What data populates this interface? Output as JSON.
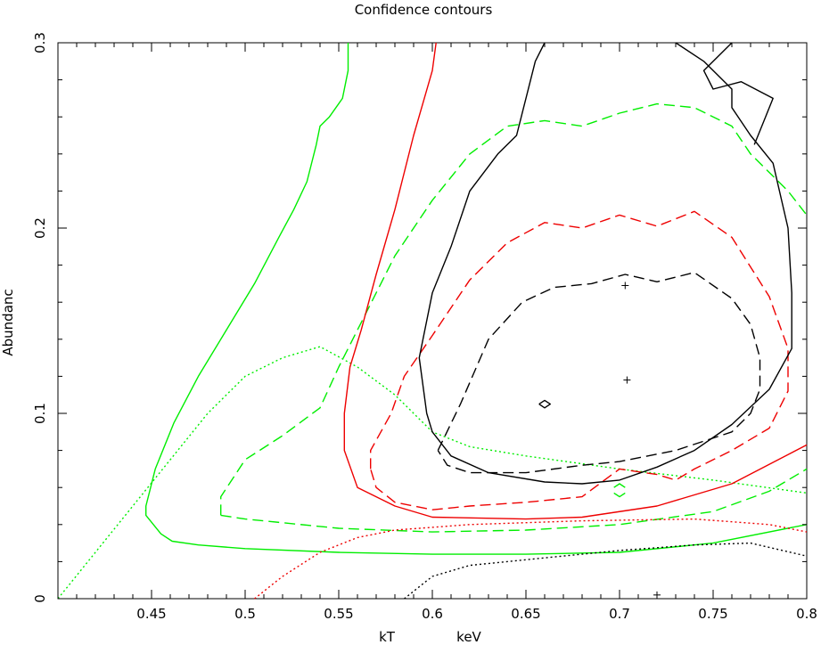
{
  "chart_data": {
    "type": "line",
    "title": "Confidence contours",
    "xlabel": "kT",
    "xunit": "keV",
    "ylabel": "Abundanc",
    "xlim": [
      0.4,
      0.8
    ],
    "ylim": [
      0,
      0.3
    ],
    "xticks": [
      "0.45",
      "0.5",
      "0.55",
      "0.6",
      "0.65",
      "0.7",
      "0.75",
      "0.8"
    ],
    "xtick_values": [
      0.45,
      0.5,
      0.55,
      0.6,
      0.65,
      0.7,
      0.75,
      0.8
    ],
    "yticks": [
      "0",
      "0.1",
      "0.2",
      "0.3"
    ],
    "ytick_values": [
      0,
      0.1,
      0.2,
      0.3
    ],
    "grid": false,
    "colors": {
      "green": "#00ee00",
      "red": "#ee0000",
      "black": "#000000"
    },
    "series": [
      {
        "color": "green",
        "style": "solid",
        "points": [
          [
            0.555,
            0.3
          ],
          [
            0.555,
            0.285
          ],
          [
            0.552,
            0.27
          ],
          [
            0.545,
            0.26
          ],
          [
            0.54,
            0.255
          ],
          [
            0.538,
            0.245
          ],
          [
            0.533,
            0.225
          ],
          [
            0.526,
            0.21
          ],
          [
            0.518,
            0.195
          ],
          [
            0.505,
            0.17
          ],
          [
            0.49,
            0.145
          ],
          [
            0.475,
            0.12
          ],
          [
            0.462,
            0.095
          ],
          [
            0.452,
            0.07
          ],
          [
            0.447,
            0.05
          ],
          [
            0.447,
            0.045
          ],
          [
            0.455,
            0.035
          ],
          [
            0.461,
            0.031
          ],
          [
            0.475,
            0.029
          ],
          [
            0.5,
            0.027
          ],
          [
            0.55,
            0.025
          ],
          [
            0.6,
            0.024
          ],
          [
            0.65,
            0.024
          ],
          [
            0.7,
            0.025
          ],
          [
            0.75,
            0.03
          ],
          [
            0.8,
            0.04
          ]
        ]
      },
      {
        "color": "green",
        "style": "dashed",
        "points": [
          [
            0.487,
            0.045
          ],
          [
            0.487,
            0.055
          ],
          [
            0.5,
            0.075
          ],
          [
            0.52,
            0.088
          ],
          [
            0.54,
            0.103
          ],
          [
            0.55,
            0.125
          ],
          [
            0.565,
            0.155
          ],
          [
            0.58,
            0.185
          ],
          [
            0.6,
            0.215
          ],
          [
            0.62,
            0.24
          ],
          [
            0.64,
            0.255
          ],
          [
            0.66,
            0.258
          ],
          [
            0.68,
            0.255
          ],
          [
            0.7,
            0.262
          ],
          [
            0.72,
            0.267
          ],
          [
            0.74,
            0.265
          ],
          [
            0.76,
            0.255
          ],
          [
            0.77,
            0.24
          ],
          [
            0.79,
            0.22
          ],
          [
            0.8,
            0.207
          ]
        ]
      },
      {
        "color": "green",
        "style": "dashed",
        "points": [
          [
            0.487,
            0.045
          ],
          [
            0.5,
            0.043
          ],
          [
            0.55,
            0.038
          ],
          [
            0.6,
            0.036
          ],
          [
            0.65,
            0.037
          ],
          [
            0.7,
            0.04
          ],
          [
            0.75,
            0.047
          ],
          [
            0.78,
            0.058
          ],
          [
            0.8,
            0.07
          ]
        ]
      },
      {
        "color": "green",
        "style": "dotted",
        "points": [
          [
            0.4,
            0.0
          ],
          [
            0.42,
            0.025
          ],
          [
            0.44,
            0.05
          ],
          [
            0.46,
            0.075
          ],
          [
            0.48,
            0.1
          ],
          [
            0.5,
            0.12
          ],
          [
            0.52,
            0.13
          ],
          [
            0.54,
            0.136
          ],
          [
            0.56,
            0.125
          ],
          [
            0.58,
            0.11
          ],
          [
            0.6,
            0.09
          ],
          [
            0.62,
            0.082
          ],
          [
            0.65,
            0.077
          ],
          [
            0.7,
            0.07
          ],
          [
            0.75,
            0.064
          ],
          [
            0.8,
            0.057
          ]
        ]
      },
      {
        "color": "red",
        "style": "solid",
        "points": [
          [
            0.602,
            0.3
          ],
          [
            0.6,
            0.285
          ],
          [
            0.59,
            0.25
          ],
          [
            0.58,
            0.21
          ],
          [
            0.57,
            0.175
          ],
          [
            0.562,
            0.145
          ],
          [
            0.556,
            0.125
          ],
          [
            0.553,
            0.1
          ],
          [
            0.553,
            0.08
          ],
          [
            0.56,
            0.06
          ],
          [
            0.58,
            0.05
          ],
          [
            0.6,
            0.044
          ],
          [
            0.65,
            0.043
          ],
          [
            0.68,
            0.044
          ],
          [
            0.72,
            0.05
          ],
          [
            0.76,
            0.062
          ],
          [
            0.8,
            0.083
          ]
        ]
      },
      {
        "color": "red",
        "style": "dashed",
        "points": [
          [
            0.567,
            0.07
          ],
          [
            0.567,
            0.08
          ],
          [
            0.578,
            0.1
          ],
          [
            0.585,
            0.12
          ],
          [
            0.6,
            0.142
          ],
          [
            0.62,
            0.172
          ],
          [
            0.64,
            0.192
          ],
          [
            0.66,
            0.203
          ],
          [
            0.68,
            0.2
          ],
          [
            0.7,
            0.207
          ],
          [
            0.72,
            0.201
          ],
          [
            0.74,
            0.209
          ],
          [
            0.76,
            0.195
          ],
          [
            0.78,
            0.163
          ],
          [
            0.79,
            0.135
          ],
          [
            0.79,
            0.112
          ],
          [
            0.78,
            0.092
          ],
          [
            0.76,
            0.08
          ],
          [
            0.74,
            0.07
          ],
          [
            0.73,
            0.064
          ],
          [
            0.72,
            0.067
          ],
          [
            0.7,
            0.07
          ],
          [
            0.68,
            0.055
          ],
          [
            0.65,
            0.052
          ],
          [
            0.62,
            0.05
          ],
          [
            0.6,
            0.048
          ],
          [
            0.58,
            0.052
          ],
          [
            0.57,
            0.06
          ],
          [
            0.567,
            0.07
          ]
        ]
      },
      {
        "color": "red",
        "style": "dotted",
        "points": [
          [
            0.505,
            0.0
          ],
          [
            0.52,
            0.012
          ],
          [
            0.54,
            0.025
          ],
          [
            0.56,
            0.033
          ],
          [
            0.58,
            0.037
          ],
          [
            0.62,
            0.04
          ],
          [
            0.68,
            0.042
          ],
          [
            0.74,
            0.043
          ],
          [
            0.78,
            0.04
          ],
          [
            0.8,
            0.036
          ]
        ]
      },
      {
        "color": "black",
        "style": "solid",
        "points": [
          [
            0.66,
            0.3
          ],
          [
            0.655,
            0.29
          ],
          [
            0.65,
            0.27
          ],
          [
            0.645,
            0.25
          ],
          [
            0.635,
            0.24
          ],
          [
            0.62,
            0.22
          ],
          [
            0.61,
            0.19
          ],
          [
            0.6,
            0.165
          ],
          [
            0.593,
            0.13
          ],
          [
            0.597,
            0.1
          ],
          [
            0.6,
            0.09
          ],
          [
            0.61,
            0.077
          ],
          [
            0.63,
            0.068
          ],
          [
            0.66,
            0.063
          ],
          [
            0.68,
            0.062
          ],
          [
            0.7,
            0.064
          ],
          [
            0.72,
            0.071
          ],
          [
            0.74,
            0.08
          ],
          [
            0.76,
            0.094
          ],
          [
            0.78,
            0.113
          ],
          [
            0.792,
            0.135
          ],
          [
            0.792,
            0.165
          ],
          [
            0.79,
            0.2
          ],
          [
            0.782,
            0.235
          ],
          [
            0.77,
            0.25
          ],
          [
            0.76,
            0.265
          ],
          [
            0.76,
            0.275
          ],
          [
            0.745,
            0.29
          ],
          [
            0.73,
            0.3
          ]
        ]
      },
      {
        "color": "black",
        "style": "solid",
        "points": [
          [
            0.76,
            0.3
          ],
          [
            0.745,
            0.285
          ],
          [
            0.75,
            0.275
          ],
          [
            0.765,
            0.279
          ],
          [
            0.782,
            0.27
          ],
          [
            0.778,
            0.26
          ],
          [
            0.772,
            0.245
          ]
        ]
      },
      {
        "color": "black",
        "style": "dashed",
        "points": [
          [
            0.603,
            0.08
          ],
          [
            0.615,
            0.105
          ],
          [
            0.63,
            0.14
          ],
          [
            0.648,
            0.16
          ],
          [
            0.665,
            0.168
          ],
          [
            0.685,
            0.17
          ],
          [
            0.703,
            0.175
          ],
          [
            0.72,
            0.171
          ],
          [
            0.74,
            0.176
          ],
          [
            0.76,
            0.162
          ],
          [
            0.77,
            0.148
          ],
          [
            0.775,
            0.13
          ],
          [
            0.775,
            0.113
          ],
          [
            0.77,
            0.1
          ],
          [
            0.76,
            0.09
          ],
          [
            0.745,
            0.085
          ],
          [
            0.73,
            0.08
          ],
          [
            0.7,
            0.074
          ],
          [
            0.68,
            0.072
          ],
          [
            0.65,
            0.068
          ],
          [
            0.62,
            0.068
          ],
          [
            0.608,
            0.072
          ],
          [
            0.603,
            0.08
          ]
        ]
      },
      {
        "color": "black",
        "style": "dotted",
        "points": [
          [
            0.585,
            0.0
          ],
          [
            0.6,
            0.012
          ],
          [
            0.62,
            0.018
          ],
          [
            0.66,
            0.022
          ],
          [
            0.7,
            0.026
          ],
          [
            0.74,
            0.029
          ],
          [
            0.77,
            0.03
          ],
          [
            0.8,
            0.023
          ]
        ]
      },
      {
        "color": "black",
        "style": "solid",
        "points": [
          [
            0.657,
            0.105
          ],
          [
            0.66,
            0.107
          ],
          [
            0.663,
            0.105
          ],
          [
            0.66,
            0.103
          ],
          [
            0.657,
            0.105
          ]
        ]
      },
      {
        "color": "green",
        "style": "solid",
        "points": [
          [
            0.697,
            0.06
          ],
          [
            0.7,
            0.062
          ],
          [
            0.703,
            0.06
          ]
        ]
      },
      {
        "color": "green",
        "style": "solid",
        "points": [
          [
            0.697,
            0.057
          ],
          [
            0.7,
            0.055
          ],
          [
            0.703,
            0.057
          ]
        ]
      }
    ],
    "markers": [
      {
        "x": 0.703,
        "y": 0.169
      },
      {
        "x": 0.704,
        "y": 0.118
      },
      {
        "x": 0.72,
        "y": 0.002
      }
    ]
  }
}
